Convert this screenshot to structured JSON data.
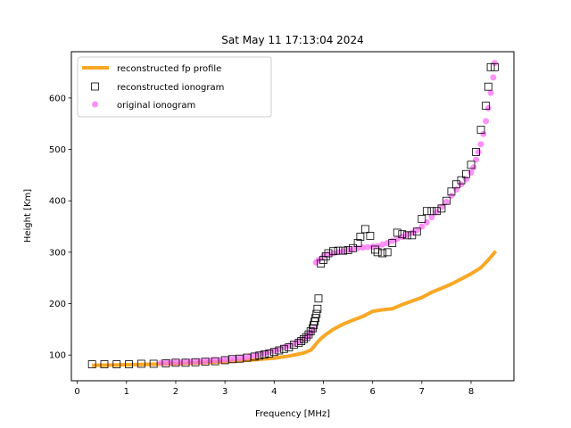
{
  "chart_data": {
    "type": "scatter",
    "title": "Sat May 11 17:13:04 2024",
    "xlabel": "Frequency [MHz]",
    "ylabel": "Height [Km]",
    "xlim": [
      -0.12,
      8.87
    ],
    "ylim": [
      50,
      690
    ],
    "x_ticks": [
      0,
      1,
      2,
      3,
      4,
      5,
      6,
      7,
      8
    ],
    "y_ticks": [
      100,
      200,
      300,
      400,
      500,
      600
    ],
    "grid": false,
    "legend_position": "upper-left",
    "legend": [
      "reconstructed fp profile",
      "reconstructed ionogram",
      "original ionogram"
    ],
    "colors": {
      "profile": "#f9a825",
      "original": "#ff6ef5",
      "reconstructed": "#000000"
    },
    "series": [
      {
        "name": "reconstructed fp profile",
        "kind": "line",
        "x": [
          0.3,
          1.0,
          1.5,
          2.0,
          2.5,
          3.0,
          3.5,
          4.0,
          4.3,
          4.6,
          4.75,
          4.82,
          4.88,
          4.95,
          5.05,
          5.2,
          5.4,
          5.6,
          5.8,
          6.0,
          6.2,
          6.4,
          6.6,
          6.8,
          7.0,
          7.2,
          7.4,
          7.6,
          7.8,
          8.0,
          8.2,
          8.35,
          8.5
        ],
        "y": [
          80,
          81,
          82,
          83,
          85,
          87,
          90,
          94,
          98,
          104,
          110,
          118,
          125,
          132,
          140,
          150,
          160,
          168,
          175,
          185,
          188,
          190,
          198,
          205,
          212,
          222,
          230,
          238,
          248,
          258,
          270,
          285,
          302
        ]
      },
      {
        "name": "original ionogram",
        "kind": "scatter",
        "x": [
          1.7,
          1.8,
          1.9,
          2.0,
          2.1,
          2.2,
          2.3,
          2.4,
          2.5,
          2.6,
          2.7,
          2.8,
          2.9,
          3.0,
          3.1,
          3.2,
          3.3,
          3.4,
          3.5,
          3.6,
          3.7,
          3.8,
          3.9,
          4.0,
          4.1,
          4.2,
          4.3,
          4.4,
          4.5,
          4.6,
          4.65,
          4.7,
          4.75,
          4.8,
          4.85,
          4.9,
          5.0,
          5.1,
          5.2,
          5.3,
          5.4,
          5.5,
          5.6,
          5.7,
          5.8,
          5.9,
          6.0,
          6.1,
          6.2,
          6.3,
          6.4,
          6.5,
          6.6,
          6.7,
          6.8,
          6.9,
          7.0,
          7.1,
          7.2,
          7.3,
          7.4,
          7.5,
          7.6,
          7.7,
          7.8,
          7.9,
          8.0,
          8.05,
          8.1,
          8.15,
          8.2,
          8.25,
          8.3,
          8.35,
          8.4,
          8.45,
          8.48
        ],
        "y": [
          85,
          85,
          86,
          86,
          86,
          87,
          87,
          87,
          88,
          88,
          89,
          90,
          90,
          91,
          92,
          93,
          94,
          95,
          97,
          99,
          101,
          103,
          106,
          108,
          111,
          115,
          118,
          122,
          126,
          131,
          135,
          139,
          144,
          150,
          280,
          285,
          292,
          296,
          298,
          300,
          302,
          304,
          306,
          308,
          309,
          310,
          311,
          312,
          315,
          318,
          322,
          326,
          330,
          334,
          338,
          343,
          350,
          358,
          368,
          378,
          388,
          398,
          410,
          422,
          432,
          442,
          455,
          465,
          480,
          495,
          510,
          530,
          555,
          580,
          610,
          640,
          668
        ]
      },
      {
        "name": "reconstructed ionogram",
        "kind": "scatter",
        "x": [
          0.3,
          0.55,
          0.8,
          1.05,
          1.3,
          1.55,
          1.8,
          2.0,
          2.2,
          2.4,
          2.6,
          2.8,
          3.0,
          3.15,
          3.3,
          3.45,
          3.6,
          3.7,
          3.8,
          3.9,
          4.0,
          4.1,
          4.2,
          4.3,
          4.4,
          4.5,
          4.55,
          4.6,
          4.65,
          4.7,
          4.74,
          4.78,
          4.8,
          4.82,
          4.84,
          4.86,
          4.88,
          4.9,
          4.95,
          5.0,
          5.05,
          5.1,
          5.2,
          5.3,
          5.4,
          5.5,
          5.6,
          5.7,
          5.75,
          5.85,
          5.95,
          6.05,
          6.1,
          6.2,
          6.3,
          6.4,
          6.5,
          6.6,
          6.7,
          6.8,
          6.9,
          7.0,
          7.1,
          7.2,
          7.3,
          7.4,
          7.5,
          7.6,
          7.7,
          7.8,
          7.9,
          8.0,
          8.1,
          8.2,
          8.3,
          8.35,
          8.4,
          8.48
        ],
        "y": [
          82,
          82,
          82,
          82,
          83,
          83,
          84,
          85,
          85,
          86,
          87,
          88,
          90,
          92,
          93,
          95,
          97,
          99,
          101,
          103,
          106,
          109,
          112,
          115,
          120,
          124,
          127,
          131,
          135,
          140,
          146,
          152,
          158,
          165,
          172,
          180,
          190,
          210,
          278,
          285,
          292,
          298,
          302,
          303,
          303,
          304,
          308,
          318,
          330,
          345,
          332,
          305,
          300,
          298,
          300,
          318,
          338,
          335,
          333,
          333,
          340,
          365,
          380,
          380,
          380,
          385,
          400,
          418,
          432,
          440,
          452,
          470,
          495,
          538,
          585,
          622,
          660,
          660
        ]
      }
    ]
  }
}
